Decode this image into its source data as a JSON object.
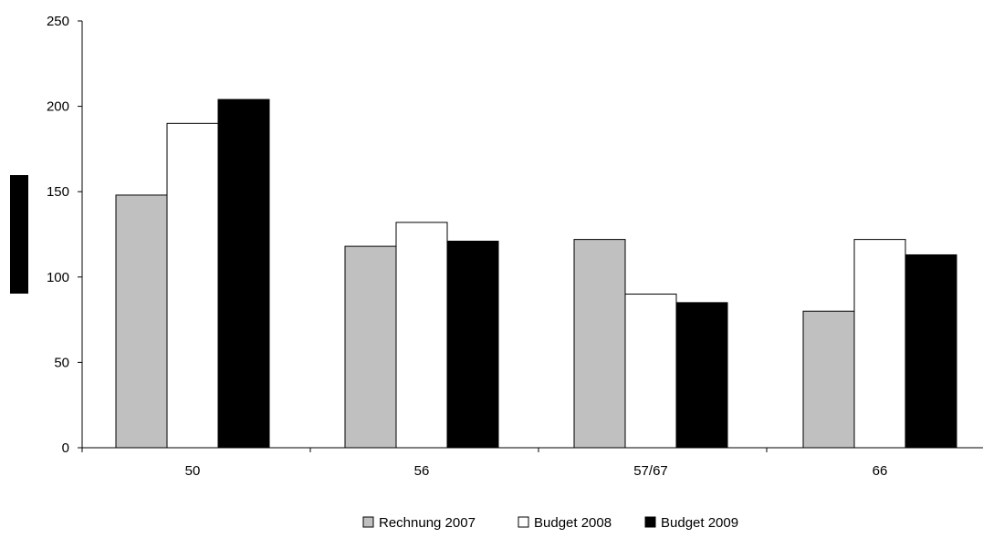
{
  "chart_data": {
    "type": "bar",
    "title": "",
    "xlabel": "",
    "ylabel": "",
    "categories": [
      "50",
      "56",
      "57/67",
      "66"
    ],
    "series": [
      {
        "name": "Rechnung 2007",
        "values": [
          148,
          118,
          122,
          80
        ],
        "color": "#c0c0c0"
      },
      {
        "name": "Budget 2008",
        "values": [
          190,
          132,
          90,
          122
        ],
        "color": "#ffffff"
      },
      {
        "name": "Budget 2009",
        "values": [
          204,
          121,
          85,
          113
        ],
        "color": "#000000"
      }
    ],
    "ylim": [
      0,
      250
    ],
    "yticks": [
      0,
      50,
      100,
      150,
      200,
      250
    ],
    "ytick_labels": [
      "0",
      "50",
      "100",
      "150",
      "200",
      "250"
    ],
    "grid": false,
    "legend_position": "bottom"
  }
}
